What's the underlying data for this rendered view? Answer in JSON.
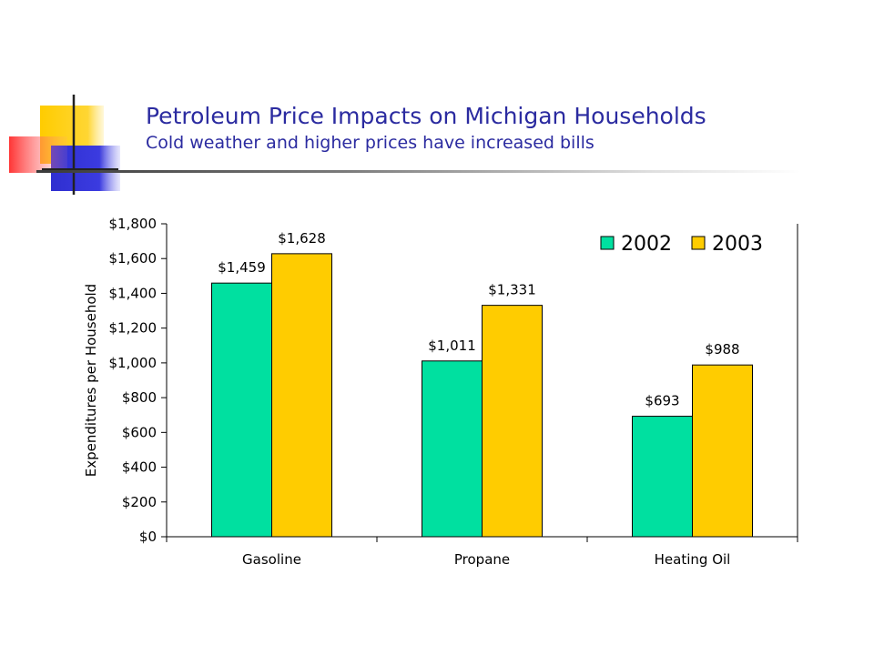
{
  "slide": {
    "title": "Petroleum Price Impacts on Michigan Households",
    "subtitle": "Cold weather and higher prices have increased bills"
  },
  "colors": {
    "title_text": "#2b2ba0",
    "logo_yellow": "#ffcc00",
    "logo_blue": "#3333cc",
    "logo_red": "#ff3333"
  },
  "chart_data": {
    "type": "bar",
    "categories": [
      "Gasoline",
      "Propane",
      "Heating Oil"
    ],
    "series": [
      {
        "name": "2002",
        "values": [
          1459,
          1011,
          693
        ],
        "labels": [
          "$1,459",
          "$1,011",
          "$693"
        ],
        "color": "#00e0a0"
      },
      {
        "name": "2003",
        "values": [
          1628,
          1331,
          988
        ],
        "labels": [
          "$1,628",
          "$1,331",
          "$988"
        ],
        "color": "#ffcc00"
      }
    ],
    "ylabel": "Expenditures per Household",
    "ylim": [
      0,
      1800
    ],
    "yticks": [
      0,
      200,
      400,
      600,
      800,
      1000,
      1200,
      1400,
      1600,
      1800
    ],
    "ytick_labels": [
      "$0",
      "$200",
      "$400",
      "$600",
      "$800",
      "$1,000",
      "$1,200",
      "$1,400",
      "$1,600",
      "$1,800"
    ],
    "grid": false,
    "legend_position": "top-right"
  }
}
